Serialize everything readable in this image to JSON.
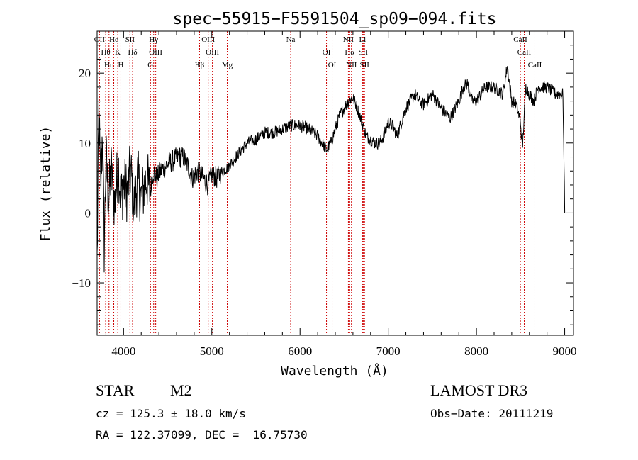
{
  "chart_data": {
    "type": "line",
    "title": "spec−55915−F5591504_sp09−094.fits",
    "xlabel": "Wavelength (Å)",
    "ylabel": "Flux (relative)",
    "xlim": [
      3700,
      9100
    ],
    "ylim": [
      -17.5,
      26
    ],
    "x_ticks": [
      4000,
      5000,
      6000,
      7000,
      8000,
      9000
    ],
    "x_tick_labels": [
      "4000",
      "5000",
      "6000",
      "7000",
      "8000",
      "9000"
    ],
    "y_ticks": [
      -10,
      0,
      10,
      20
    ],
    "y_tick_labels": [
      "−10",
      "0",
      "10",
      "20"
    ],
    "series": [
      {
        "name": "flux",
        "x": [
          3700,
          3720,
          3740,
          3760,
          3780,
          3800,
          3830,
          3860,
          3900,
          3940,
          3970,
          4000,
          4040,
          4080,
          4120,
          4160,
          4200,
          4260,
          4300,
          4340,
          4380,
          4420,
          4460,
          4500,
          4560,
          4620,
          4680,
          4720,
          4780,
          4840,
          4900,
          4960,
          5000,
          5060,
          5120,
          5180,
          5240,
          5300,
          5400,
          5500,
          5600,
          5700,
          5800,
          5900,
          6000,
          6100,
          6200,
          6300,
          6350,
          6400,
          6450,
          6500,
          6550,
          6600,
          6650,
          6700,
          6750,
          6800,
          6850,
          6900,
          6950,
          7000,
          7050,
          7100,
          7150,
          7200,
          7250,
          7300,
          7350,
          7400,
          7500,
          7600,
          7700,
          7800,
          7850,
          7900,
          7950,
          8000,
          8100,
          8200,
          8300,
          8350,
          8400,
          8450,
          8500,
          8520,
          8560,
          8600,
          8650,
          8700,
          8800,
          8900,
          8980,
          9000
        ],
        "y": [
          -7,
          15,
          3,
          12,
          -5,
          8,
          2,
          6,
          1,
          7,
          2,
          4,
          3,
          6,
          1,
          5,
          2,
          5,
          3,
          6,
          5,
          6,
          6.5,
          7,
          7.5,
          8,
          8,
          7,
          5,
          6,
          5,
          4,
          5.5,
          5,
          6,
          6.5,
          7.5,
          8.5,
          10,
          10.5,
          11.5,
          11.5,
          12,
          12.5,
          12.5,
          12,
          11,
          9,
          10,
          12,
          14,
          15,
          16,
          16.5,
          15,
          13,
          11,
          10.5,
          10,
          10,
          11,
          13,
          12.5,
          11,
          13,
          15,
          16,
          17,
          16,
          15.5,
          17,
          15,
          13.5,
          16,
          18,
          18.5,
          16,
          16,
          18,
          18,
          17,
          21,
          16,
          15.5,
          13,
          9,
          18,
          17,
          16,
          18,
          18,
          17,
          17,
          0
        ]
      }
    ],
    "line_markers": [
      {
        "name": "OII",
        "wavelength": 3727
      },
      {
        "name": "Hθ",
        "wavelength": 3797
      },
      {
        "name": "Hη",
        "wavelength": 3835
      },
      {
        "name": "He",
        "wavelength": 3889
      },
      {
        "name": "K",
        "wavelength": 3934
      },
      {
        "name": "H",
        "wavelength": 3969
      },
      {
        "name": "SII",
        "wavelength": 4072
      },
      {
        "name": "Hδ",
        "wavelength": 4102
      },
      {
        "name": "G",
        "wavelength": 4305
      },
      {
        "name": "Hγ",
        "wavelength": 4341
      },
      {
        "name": "OIII",
        "wavelength": 4364
      },
      {
        "name": "Hβ",
        "wavelength": 4861
      },
      {
        "name": "OIII",
        "wavelength": 4959
      },
      {
        "name": "OIII",
        "wavelength": 5007
      },
      {
        "name": "Mg",
        "wavelength": 5175
      },
      {
        "name": "Na",
        "wavelength": 5894
      },
      {
        "name": "OI",
        "wavelength": 6300
      },
      {
        "name": "OI",
        "wavelength": 6364
      },
      {
        "name": "NII",
        "wavelength": 6548
      },
      {
        "name": "Hα",
        "wavelength": 6563
      },
      {
        "name": "NII",
        "wavelength": 6583
      },
      {
        "name": "Li",
        "wavelength": 6708
      },
      {
        "name": "SII",
        "wavelength": 6716
      },
      {
        "name": "SII",
        "wavelength": 6731
      },
      {
        "name": "CaII",
        "wavelength": 8498
      },
      {
        "name": "CaII",
        "wavelength": 8542
      },
      {
        "name": "CaII",
        "wavelength": 8662
      }
    ]
  },
  "info": {
    "object_class": "STAR",
    "subclass": "M2",
    "survey": "LAMOST DR3",
    "cz": "cz = 125.3 ± 18.0 km/s",
    "obs_date": "Obs−Date: 20111219",
    "coords": "RA = 122.37099, DEC =  16.75730"
  },
  "colors": {
    "line": "#000000",
    "marker": "#cc0000",
    "background": "#ffffff"
  }
}
